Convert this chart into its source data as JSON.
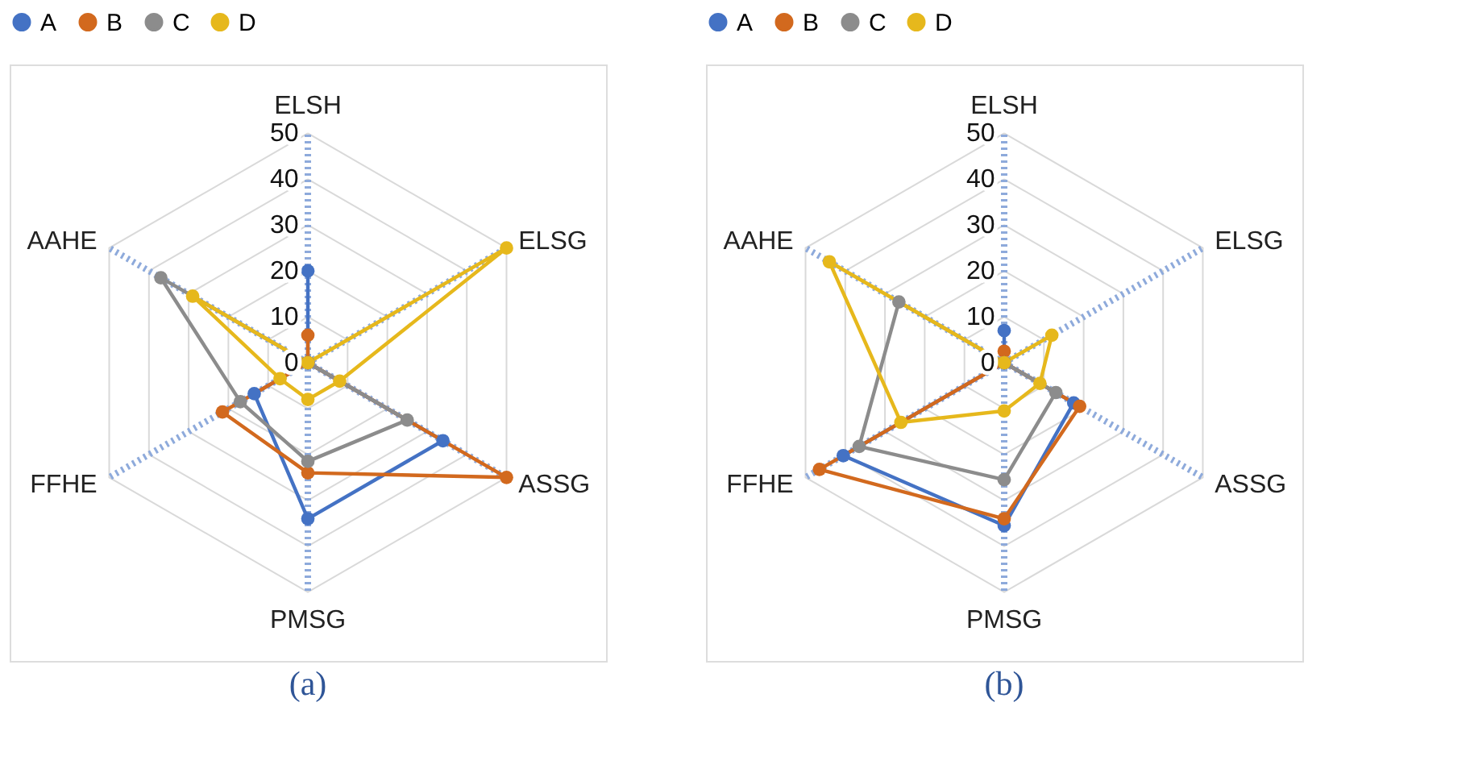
{
  "chart_data": [
    {
      "type": "radar",
      "categories": [
        "ELSH",
        "ELSG",
        "ASSG",
        "PMSG",
        "FFHE",
        "AAHE"
      ],
      "ylim": [
        0,
        50
      ],
      "yticks": [
        0,
        10,
        20,
        30,
        40,
        50
      ],
      "grid": true,
      "legend": "top",
      "marker": "circle",
      "annotations": [
        "(a)"
      ],
      "series": [
        {
          "name": "A",
          "color": "#4472c4",
          "values": [
            20,
            0,
            34,
            34,
            13.5,
            0
          ]
        },
        {
          "name": "B",
          "color": "#d2691e",
          "values": [
            6,
            0,
            50,
            24,
            21.5,
            0
          ]
        },
        {
          "name": "C",
          "color": "#8c8c8c",
          "values": [
            0,
            0,
            25,
            21.5,
            17,
            37
          ]
        },
        {
          "name": "D",
          "color": "#e6b81c",
          "values": [
            0,
            50,
            8,
            8,
            7,
            29
          ]
        }
      ]
    },
    {
      "type": "radar",
      "categories": [
        "ELSH",
        "ELSG",
        "ASSG",
        "PMSG",
        "FFHE",
        "AAHE"
      ],
      "ylim": [
        0,
        50
      ],
      "yticks": [
        0,
        10,
        20,
        30,
        40,
        50
      ],
      "grid": true,
      "legend": "top",
      "marker": "circle",
      "annotations": [
        "(b)"
      ],
      "series": [
        {
          "name": "A",
          "color": "#4472c4",
          "values": [
            7,
            0,
            17.5,
            35.5,
            40.5,
            0
          ]
        },
        {
          "name": "B",
          "color": "#d2691e",
          "values": [
            2.5,
            0,
            19,
            34,
            46.5,
            0
          ]
        },
        {
          "name": "C",
          "color": "#8c8c8c",
          "values": [
            0,
            0,
            13,
            25.5,
            36.5,
            26.5
          ]
        },
        {
          "name": "D",
          "color": "#e6b81c",
          "values": [
            0,
            12,
            9,
            10.5,
            26,
            44
          ]
        }
      ]
    }
  ]
}
